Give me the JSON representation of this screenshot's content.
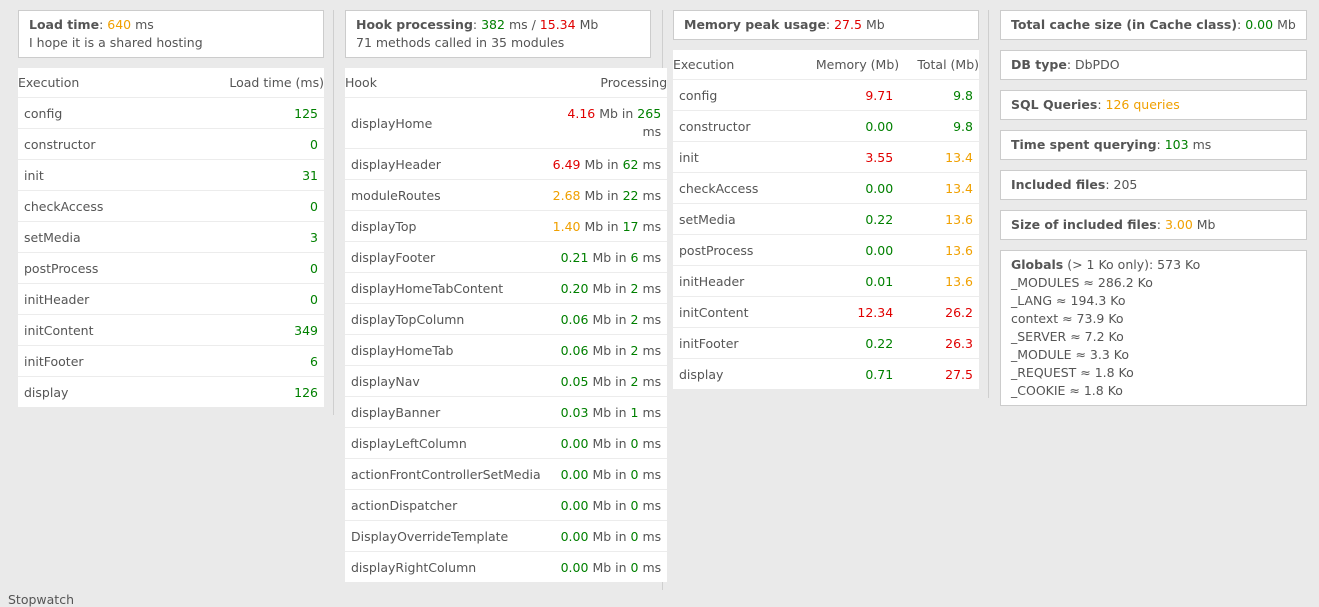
{
  "load_time": {
    "label": "Load time",
    "value": "640",
    "unit": "ms",
    "note": "I hope it is a shared hosting",
    "table_headers": [
      "Execution",
      "Load time (ms)"
    ],
    "rows": [
      {
        "name": "config",
        "value": "125"
      },
      {
        "name": "constructor",
        "value": "0"
      },
      {
        "name": "init",
        "value": "31"
      },
      {
        "name": "checkAccess",
        "value": "0"
      },
      {
        "name": "setMedia",
        "value": "3"
      },
      {
        "name": "postProcess",
        "value": "0"
      },
      {
        "name": "initHeader",
        "value": "0"
      },
      {
        "name": "initContent",
        "value": "349"
      },
      {
        "name": "initFooter",
        "value": "6"
      },
      {
        "name": "display",
        "value": "126"
      }
    ]
  },
  "hook": {
    "label": "Hook processing",
    "time": "382",
    "time_unit": "ms /",
    "mem": "15.34",
    "mem_unit": "Mb",
    "summary": "71 methods called in 35 modules",
    "table_headers": [
      "Hook",
      "Processing"
    ],
    "mb_sep": "Mb in",
    "ms_unit": "ms",
    "rows": [
      {
        "name": "displayHome",
        "mb": "4.16",
        "mb_color": "r",
        "ms": "265"
      },
      {
        "name": "displayHeader",
        "mb": "6.49",
        "mb_color": "r",
        "ms": "62"
      },
      {
        "name": "moduleRoutes",
        "mb": "2.68",
        "mb_color": "o",
        "ms": "22"
      },
      {
        "name": "displayTop",
        "mb": "1.40",
        "mb_color": "o",
        "ms": "17"
      },
      {
        "name": "displayFooter",
        "mb": "0.21",
        "mb_color": "g",
        "ms": "6"
      },
      {
        "name": "displayHomeTabContent",
        "mb": "0.20",
        "mb_color": "g",
        "ms": "2"
      },
      {
        "name": "displayTopColumn",
        "mb": "0.06",
        "mb_color": "g",
        "ms": "2"
      },
      {
        "name": "displayHomeTab",
        "mb": "0.06",
        "mb_color": "g",
        "ms": "2"
      },
      {
        "name": "displayNav",
        "mb": "0.05",
        "mb_color": "g",
        "ms": "2"
      },
      {
        "name": "displayBanner",
        "mb": "0.03",
        "mb_color": "g",
        "ms": "1"
      },
      {
        "name": "displayLeftColumn",
        "mb": "0.00",
        "mb_color": "g",
        "ms": "0"
      },
      {
        "name": "actionFrontControllerSetMedia",
        "mb": "0.00",
        "mb_color": "g",
        "ms": "0"
      },
      {
        "name": "actionDispatcher",
        "mb": "0.00",
        "mb_color": "g",
        "ms": "0"
      },
      {
        "name": "DisplayOverrideTemplate",
        "mb": "0.00",
        "mb_color": "g",
        "ms": "0"
      },
      {
        "name": "displayRightColumn",
        "mb": "0.00",
        "mb_color": "g",
        "ms": "0"
      }
    ]
  },
  "memory": {
    "label": "Memory peak usage",
    "value": "27.5",
    "unit": "Mb",
    "table_headers": [
      "Execution",
      "Memory (Mb)",
      "Total (Mb)"
    ],
    "rows": [
      {
        "name": "config",
        "mem": "9.71",
        "mem_color": "r",
        "total": "9.8",
        "total_color": "g"
      },
      {
        "name": "constructor",
        "mem": "0.00",
        "mem_color": "g",
        "total": "9.8",
        "total_color": "g"
      },
      {
        "name": "init",
        "mem": "3.55",
        "mem_color": "r",
        "total": "13.4",
        "total_color": "o"
      },
      {
        "name": "checkAccess",
        "mem": "0.00",
        "mem_color": "g",
        "total": "13.4",
        "total_color": "o"
      },
      {
        "name": "setMedia",
        "mem": "0.22",
        "mem_color": "g",
        "total": "13.6",
        "total_color": "o"
      },
      {
        "name": "postProcess",
        "mem": "0.00",
        "mem_color": "g",
        "total": "13.6",
        "total_color": "o"
      },
      {
        "name": "initHeader",
        "mem": "0.01",
        "mem_color": "g",
        "total": "13.6",
        "total_color": "o"
      },
      {
        "name": "initContent",
        "mem": "12.34",
        "mem_color": "r",
        "total": "26.2",
        "total_color": "r"
      },
      {
        "name": "initFooter",
        "mem": "0.22",
        "mem_color": "g",
        "total": "26.3",
        "total_color": "r"
      },
      {
        "name": "display",
        "mem": "0.71",
        "mem_color": "g",
        "total": "27.5",
        "total_color": "r"
      }
    ]
  },
  "stats": {
    "cache_label": "Total cache size (in Cache class)",
    "cache_value": "0.00",
    "cache_unit": "Mb",
    "db_label": "DB type",
    "db_value": "DbPDO",
    "sql_label": "SQL Queries",
    "sql_value": "126 queries",
    "query_time_label": "Time spent querying",
    "query_time_value": "103",
    "query_time_unit": "ms",
    "files_label": "Included files",
    "files_value": "205",
    "files_size_label": "Size of included files",
    "files_size_value": "3.00",
    "files_size_unit": "Mb",
    "globals_label": "Globals",
    "globals_note": "(> 1 Ko only): 573 Ko",
    "globals": [
      "_MODULES ≈ 286.2 Ko",
      "_LANG ≈ 194.3 Ko",
      "context ≈ 73.9 Ko",
      "_SERVER ≈ 7.2 Ko",
      "_MODULE ≈ 3.3 Ko",
      "_REQUEST ≈ 1.8 Ko",
      "_COOKIE ≈ 1.8 Ko"
    ]
  },
  "footer": {
    "stopwatch": "Stopwatch"
  },
  "colors": {
    "green": "#008000",
    "red": "#e00000",
    "orange": "#f0a000"
  }
}
